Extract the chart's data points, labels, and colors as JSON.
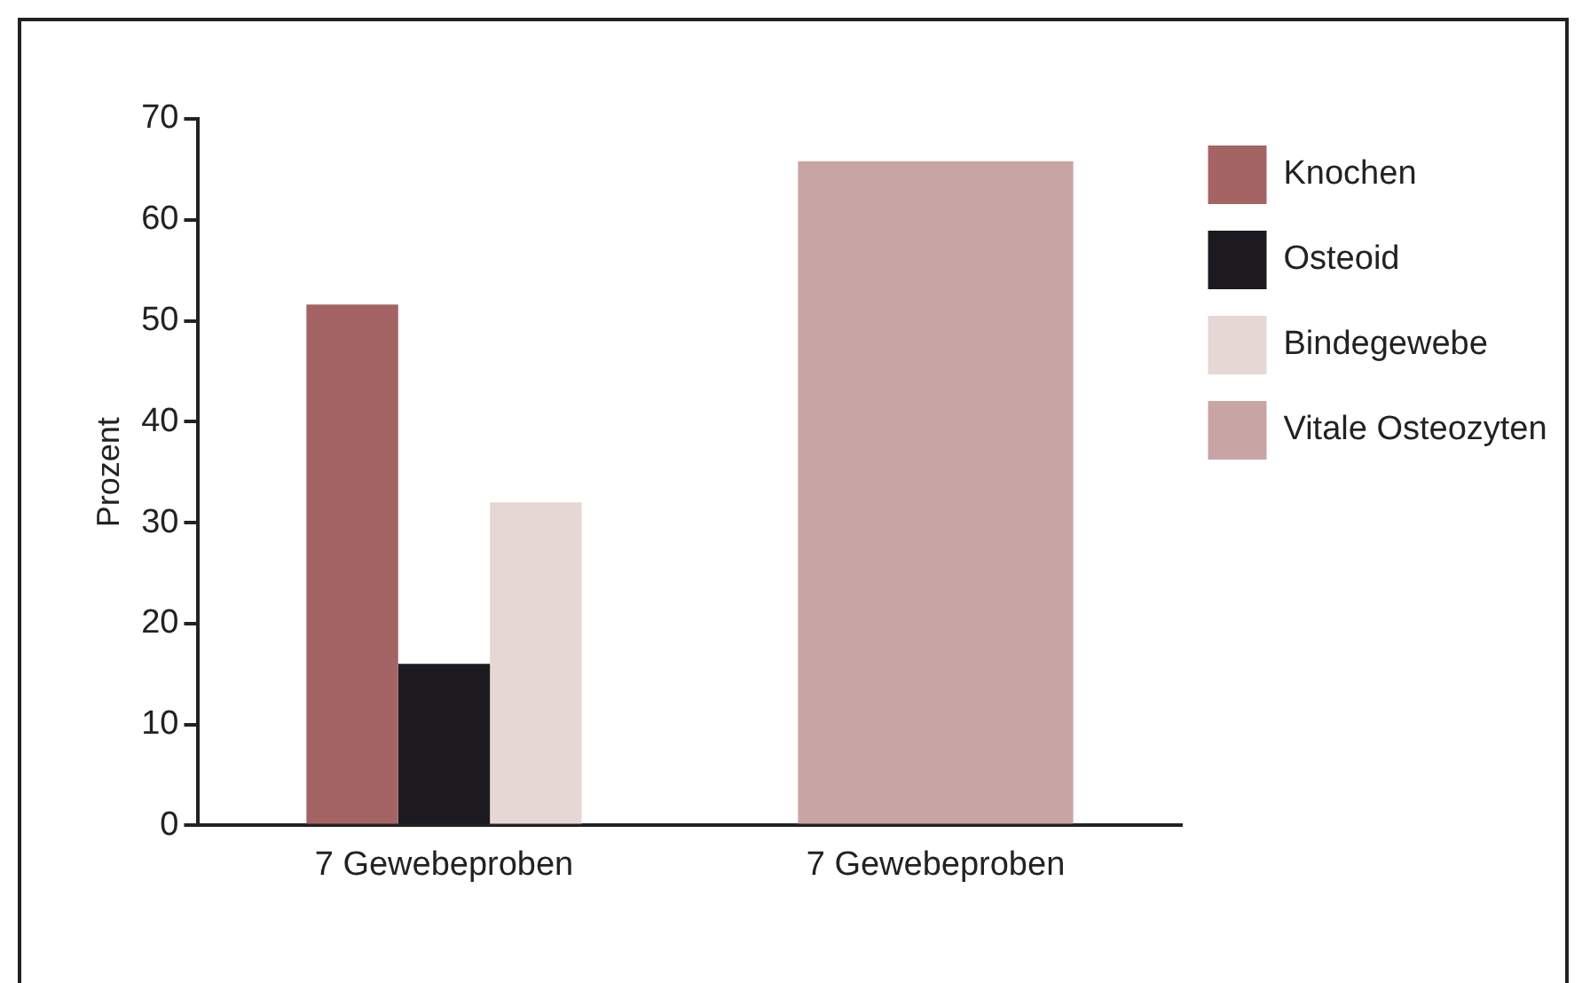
{
  "chart_data": {
    "type": "bar",
    "ylabel": "Prozent",
    "categories": [
      "7 Gewebeproben",
      "7 Gewebeproben"
    ],
    "series": [
      {
        "name": "Knochen",
        "color": "#a46464",
        "values": [
          51.6,
          null
        ]
      },
      {
        "name": "Osteoid",
        "color": "#1c1a1f",
        "values": [
          16,
          null
        ]
      },
      {
        "name": "Bindegewebe",
        "color": "#e6d7d5",
        "values": [
          32,
          null
        ]
      },
      {
        "name": "Vitale Osteozyten",
        "color": "#c9a4a4",
        "values": [
          null,
          65.8
        ]
      }
    ],
    "ylim": [
      0,
      70
    ],
    "yticks": [
      0,
      10,
      20,
      30,
      40,
      50,
      60,
      70
    ],
    "grid": false,
    "legend": "right"
  }
}
